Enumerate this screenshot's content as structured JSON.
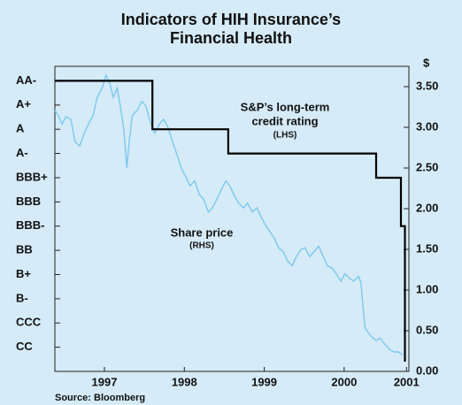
{
  "chart_data": {
    "type": "line",
    "title": "Indicators of HIH Insurance’s Financial Health",
    "source": "Source: Bloomberg",
    "y2label": "$",
    "annotations": [
      "S&P’s long-term",
      "credit rating",
      "(LHS)",
      "Share price",
      "(RHS)"
    ],
    "xlim": [
      1996.88,
      2001.31
    ],
    "xticks": [
      {
        "value": 1997.5,
        "label": "1997"
      },
      {
        "value": 1998.5,
        "label": "1998"
      },
      {
        "value": 1999.5,
        "label": "1999"
      },
      {
        "value": 2000.5,
        "label": "2000"
      },
      {
        "value": 2001.28,
        "label": "2001"
      }
    ],
    "ylim": [
      0,
      12.6
    ],
    "yticks": [
      {
        "value": 12,
        "label": "AA-"
      },
      {
        "value": 11,
        "label": "A+"
      },
      {
        "value": 10,
        "label": "A"
      },
      {
        "value": 9,
        "label": "A-"
      },
      {
        "value": 8,
        "label": "BBB+"
      },
      {
        "value": 7,
        "label": "BBB"
      },
      {
        "value": 6,
        "label": "BBB-"
      },
      {
        "value": 5,
        "label": "BB"
      },
      {
        "value": 4,
        "label": "B+"
      },
      {
        "value": 3,
        "label": "B-"
      },
      {
        "value": 2,
        "label": "CCC"
      },
      {
        "value": 1,
        "label": "CC"
      }
    ],
    "y2lim": [
      0,
      3.75
    ],
    "y2ticks": [
      {
        "value": 3.5,
        "label": "3.50"
      },
      {
        "value": 3,
        "label": "3.00"
      },
      {
        "value": 2.5,
        "label": "2.50"
      },
      {
        "value": 2,
        "label": "2.00"
      },
      {
        "value": 1.5,
        "label": "1.50"
      },
      {
        "value": 1,
        "label": "1.00"
      },
      {
        "value": 0.5,
        "label": "0.50"
      },
      {
        "value": 0,
        "label": "0.00"
      }
    ],
    "series": [
      {
        "color": "#7cc8ee",
        "axis": "y2",
        "x": [
          1996.88,
          1996.92,
          1996.97,
          1997.02,
          1997.08,
          1997.13,
          1997.19,
          1997.25,
          1997.3,
          1997.36,
          1997.41,
          1997.47,
          1997.52,
          1997.57,
          1997.61,
          1997.66,
          1997.7,
          1997.74,
          1997.78,
          1997.81,
          1997.85,
          1997.91,
          1997.97,
          1998.02,
          1998.08,
          1998.13,
          1998.19,
          1998.24,
          1998.3,
          1998.35,
          1998.41,
          1998.46,
          1998.52,
          1998.57,
          1998.63,
          1998.69,
          1998.74,
          1998.8,
          1998.85,
          1998.91,
          1998.96,
          1999.02,
          1999.07,
          1999.13,
          1999.18,
          1999.24,
          1999.29,
          1999.35,
          1999.41,
          1999.46,
          1999.52,
          1999.57,
          1999.63,
          1999.68,
          1999.74,
          1999.79,
          1999.85,
          1999.9,
          1999.96,
          2000.01,
          2000.07,
          2000.12,
          2000.18,
          2000.24,
          2000.29,
          2000.35,
          2000.4,
          2000.46,
          2000.51,
          2000.57,
          2000.62,
          2000.68,
          2000.71,
          2000.73,
          2000.76,
          2000.79,
          2000.84,
          2000.9,
          2000.95,
          2001.01,
          2001.07,
          2001.12,
          2001.18,
          2001.23
        ],
        "values": [
          3.21,
          3.15,
          3.04,
          3.13,
          3.1,
          2.83,
          2.77,
          2.93,
          3.04,
          3.15,
          3.37,
          3.48,
          3.64,
          3.53,
          3.37,
          3.48,
          3.26,
          2.99,
          2.5,
          2.83,
          3.15,
          3.21,
          3.32,
          3.26,
          3.04,
          2.93,
          3.04,
          3.1,
          2.99,
          2.83,
          2.66,
          2.5,
          2.39,
          2.28,
          2.34,
          2.17,
          2.12,
          1.96,
          2.01,
          2.12,
          2.23,
          2.34,
          2.28,
          2.15,
          2.07,
          2.01,
          2.07,
          1.96,
          2.01,
          1.9,
          1.79,
          1.72,
          1.63,
          1.52,
          1.47,
          1.36,
          1.3,
          1.41,
          1.5,
          1.52,
          1.41,
          1.47,
          1.54,
          1.41,
          1.3,
          1.27,
          1.2,
          1.11,
          1.2,
          1.14,
          1.11,
          1.17,
          1.09,
          0.87,
          0.54,
          0.49,
          0.43,
          0.38,
          0.41,
          0.33,
          0.27,
          0.24,
          0.24,
          0.2
        ]
      },
      {
        "color": "#000000",
        "axis": "y",
        "x": [
          1996.88,
          1998.1,
          1998.1,
          1999.05,
          1999.05,
          2000.9,
          2000.9,
          2001.21,
          2001.21,
          2001.26,
          2001.26
        ],
        "values": [
          12,
          12,
          10,
          10,
          9,
          9,
          8,
          8,
          6,
          6,
          0.4
        ]
      }
    ]
  }
}
